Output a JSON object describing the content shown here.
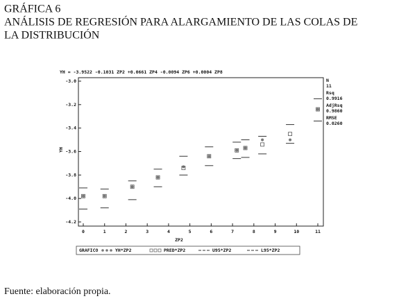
{
  "title_lines": [
    "GRÁFICA 6",
    "ANÁLISIS DE REGRESIÓN PARA ALARGAMIENTO DE LAS COLAS DE",
    "LA DISTRIBUCIÓN"
  ],
  "source": "Fuente: elaboración propia.",
  "chart_data": {
    "type": "scatter",
    "title": "YH = -3.9522 -0.1031 ZP2 +0.0661 ZP4 -0.0094 ZP6 +0.0004 ZP8",
    "x_label": "ZP2",
    "y_label": "YH",
    "x": [
      0,
      1,
      2.3,
      3.5,
      4.7,
      5.9,
      7.2,
      7.6,
      8.4,
      9.7,
      11
    ],
    "series": [
      {
        "name": "YH*ZP2",
        "color": "#777777",
        "marker": "circle",
        "values": [
          -3.98,
          -3.98,
          -3.9,
          -3.82,
          -3.73,
          -3.64,
          -3.59,
          -3.57,
          -3.5,
          -3.5,
          -3.24
        ]
      },
      {
        "name": "PRED*ZP2",
        "color": "#555555",
        "marker": "square",
        "values": [
          -3.98,
          -3.98,
          -3.9,
          -3.82,
          -3.74,
          -3.64,
          -3.59,
          -3.57,
          -3.54,
          -3.45,
          -3.24
        ]
      },
      {
        "name": "U95*ZP2",
        "color": "#333333",
        "marker": "dash",
        "values": [
          -3.91,
          -3.92,
          -3.85,
          -3.75,
          -3.64,
          -3.56,
          -3.52,
          -3.5,
          -3.47,
          -3.37,
          -3.15
        ]
      },
      {
        "name": "L95*ZP2",
        "color": "#333333",
        "marker": "dash",
        "values": [
          -4.09,
          -4.08,
          -4.01,
          -3.9,
          -3.8,
          -3.72,
          -3.66,
          -3.65,
          -3.62,
          -3.53,
          -3.34
        ]
      }
    ],
    "legend_title": "GRAFICO",
    "xlim": [
      0,
      11
    ],
    "xticks": [
      0,
      1,
      2,
      3,
      4,
      5,
      6,
      7,
      8,
      9,
      10,
      11
    ],
    "ylim": [
      -4.2,
      -3.0
    ],
    "yticks": [
      {
        "value": -4.2,
        "label": "-4.2"
      },
      {
        "value": -4,
        "label": "-4.0"
      },
      {
        "value": -3.8,
        "label": "-3.8"
      },
      {
        "value": -3.6,
        "label": "-3.6"
      },
      {
        "value": -3.4,
        "label": "-3.4"
      },
      {
        "value": -3.2,
        "label": "-3.2"
      },
      {
        "value": -3,
        "label": "-3.0"
      }
    ],
    "stats": [
      {
        "label": "N",
        "value": "11"
      },
      {
        "label": "Rsq",
        "value": "0.9916"
      },
      {
        "label": "AdjRsq",
        "value": "0.9860"
      },
      {
        "label": "RMSE",
        "value": "0.0260"
      }
    ]
  }
}
